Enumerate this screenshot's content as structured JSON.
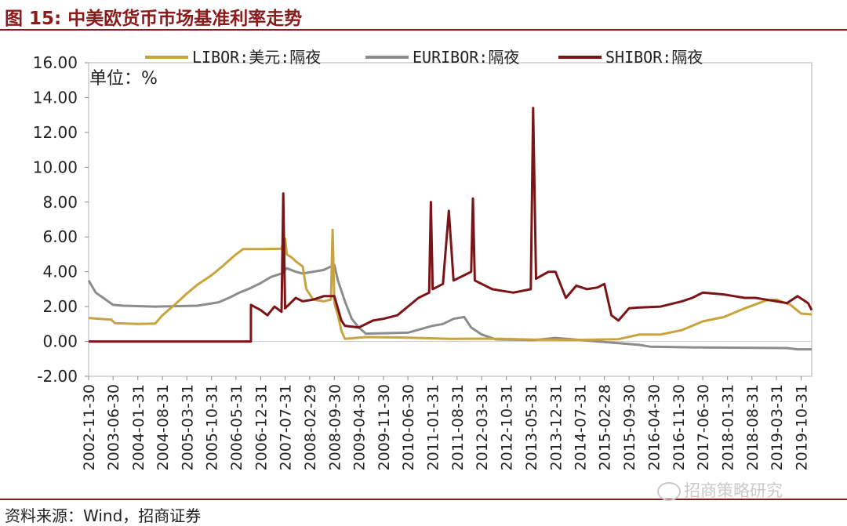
{
  "figure": {
    "title": "图 15:  中美欧货币市场基准利率走势",
    "source": "资料来源：Wind，招商证券",
    "watermark": "招商策略研究"
  },
  "chart_data": {
    "type": "line",
    "unit_label": "单位：%",
    "ylim": [
      -2,
      16
    ],
    "yticks": [
      "16.00",
      "14.00",
      "12.00",
      "10.00",
      "8.00",
      "6.00",
      "4.00",
      "2.00",
      "0.00",
      "-2.00"
    ],
    "ytick_values": [
      16,
      14,
      12,
      10,
      8,
      6,
      4,
      2,
      0,
      -2
    ],
    "xlim": [
      "2002-11-30",
      "2020-01-31"
    ],
    "xticks": [
      "2002-11-30",
      "2003-06-30",
      "2004-01-31",
      "2004-08-31",
      "2005-03-31",
      "2005-10-31",
      "2006-05-31",
      "2006-12-31",
      "2007-07-31",
      "2008-02-29",
      "2008-09-30",
      "2009-04-30",
      "2009-11-30",
      "2010-06-30",
      "2011-01-31",
      "2011-08-31",
      "2012-03-31",
      "2012-10-31",
      "2013-05-31",
      "2013-12-31",
      "2014-07-31",
      "2015-02-28",
      "2015-09-30",
      "2016-04-30",
      "2016-11-30",
      "2017-06-30",
      "2018-01-31",
      "2018-08-31",
      "2019-03-31",
      "2019-10-31"
    ],
    "legend_position": "top",
    "grid": false,
    "series": [
      {
        "name": "LIBOR:美元:隔夜",
        "color": "#c8a33e",
        "points": [
          [
            "2002-11-30",
            1.35
          ],
          [
            "2003-02-28",
            1.3
          ],
          [
            "2003-06-15",
            1.25
          ],
          [
            "2003-07-15",
            1.05
          ],
          [
            "2004-01-31",
            1.0
          ],
          [
            "2004-06-30",
            1.03
          ],
          [
            "2004-08-31",
            1.5
          ],
          [
            "2004-12-31",
            2.2
          ],
          [
            "2005-03-31",
            2.75
          ],
          [
            "2005-06-30",
            3.25
          ],
          [
            "2005-10-31",
            3.8
          ],
          [
            "2006-01-31",
            4.3
          ],
          [
            "2006-05-31",
            5.0
          ],
          [
            "2006-07-31",
            5.3
          ],
          [
            "2007-01-31",
            5.3
          ],
          [
            "2007-06-30",
            5.32
          ],
          [
            "2007-07-31",
            5.9
          ],
          [
            "2007-08-15",
            5.0
          ],
          [
            "2007-09-30",
            4.8
          ],
          [
            "2007-10-31",
            4.6
          ],
          [
            "2007-12-31",
            4.3
          ],
          [
            "2008-01-31",
            3.0
          ],
          [
            "2008-03-31",
            2.4
          ],
          [
            "2008-06-30",
            2.3
          ],
          [
            "2008-09-01",
            2.4
          ],
          [
            "2008-09-15",
            6.4
          ],
          [
            "2008-09-30",
            2.2
          ],
          [
            "2008-10-31",
            1.5
          ],
          [
            "2008-12-01",
            0.6
          ],
          [
            "2008-12-31",
            0.15
          ],
          [
            "2009-06-30",
            0.25
          ],
          [
            "2010-06-30",
            0.22
          ],
          [
            "2011-06-30",
            0.15
          ],
          [
            "2012-06-30",
            0.16
          ],
          [
            "2013-06-30",
            0.1
          ],
          [
            "2014-06-30",
            0.09
          ],
          [
            "2015-06-30",
            0.13
          ],
          [
            "2015-12-31",
            0.4
          ],
          [
            "2016-06-30",
            0.4
          ],
          [
            "2016-12-31",
            0.65
          ],
          [
            "2017-03-31",
            0.9
          ],
          [
            "2017-06-30",
            1.15
          ],
          [
            "2017-12-31",
            1.4
          ],
          [
            "2018-03-31",
            1.65
          ],
          [
            "2018-06-30",
            1.9
          ],
          [
            "2018-12-31",
            2.35
          ],
          [
            "2019-03-31",
            2.4
          ],
          [
            "2019-07-31",
            2.1
          ],
          [
            "2019-10-31",
            1.6
          ],
          [
            "2020-01-31",
            1.55
          ]
        ]
      },
      {
        "name": "EURIBOR:隔夜",
        "color": "#8c8c8c",
        "points": [
          [
            "2002-11-30",
            3.5
          ],
          [
            "2003-01-31",
            2.8
          ],
          [
            "2003-06-30",
            2.1
          ],
          [
            "2003-09-30",
            2.05
          ],
          [
            "2004-06-30",
            2.0
          ],
          [
            "2005-06-30",
            2.05
          ],
          [
            "2005-12-31",
            2.25
          ],
          [
            "2006-03-31",
            2.5
          ],
          [
            "2006-06-30",
            2.8
          ],
          [
            "2006-09-30",
            3.05
          ],
          [
            "2006-12-31",
            3.35
          ],
          [
            "2007-03-31",
            3.7
          ],
          [
            "2007-06-30",
            3.9
          ],
          [
            "2007-08-15",
            4.2
          ],
          [
            "2007-10-31",
            4.0
          ],
          [
            "2007-12-31",
            3.9
          ],
          [
            "2008-06-30",
            4.1
          ],
          [
            "2008-09-30",
            4.4
          ],
          [
            "2008-10-31",
            3.5
          ],
          [
            "2008-12-31",
            2.3
          ],
          [
            "2009-02-28",
            1.3
          ],
          [
            "2009-04-30",
            0.8
          ],
          [
            "2009-06-30",
            0.45
          ],
          [
            "2010-06-30",
            0.5
          ],
          [
            "2011-01-31",
            0.9
          ],
          [
            "2011-04-30",
            1.0
          ],
          [
            "2011-07-31",
            1.3
          ],
          [
            "2011-10-31",
            1.4
          ],
          [
            "2011-12-31",
            0.8
          ],
          [
            "2012-03-31",
            0.4
          ],
          [
            "2012-07-31",
            0.12
          ],
          [
            "2013-06-30",
            0.08
          ],
          [
            "2013-12-31",
            0.2
          ],
          [
            "2014-06-30",
            0.1
          ],
          [
            "2014-12-31",
            0.0
          ],
          [
            "2015-06-30",
            -0.1
          ],
          [
            "2015-12-31",
            -0.2
          ],
          [
            "2016-03-31",
            -0.3
          ],
          [
            "2017-06-30",
            -0.35
          ],
          [
            "2019-06-30",
            -0.38
          ],
          [
            "2019-09-30",
            -0.45
          ],
          [
            "2020-01-31",
            -0.45
          ]
        ]
      },
      {
        "name": "SHIBOR:隔夜",
        "color": "#7a1416",
        "points": [
          [
            "2002-11-30",
            0.0
          ],
          [
            "2006-10-07",
            0.0
          ],
          [
            "2006-10-08",
            2.1
          ],
          [
            "2006-12-31",
            1.8
          ],
          [
            "2007-02-28",
            1.5
          ],
          [
            "2007-04-30",
            2.0
          ],
          [
            "2007-06-30",
            1.7
          ],
          [
            "2007-07-15",
            8.5
          ],
          [
            "2007-07-31",
            1.9
          ],
          [
            "2007-10-31",
            2.5
          ],
          [
            "2007-12-31",
            2.3
          ],
          [
            "2008-03-31",
            2.4
          ],
          [
            "2008-06-30",
            2.6
          ],
          [
            "2008-09-30",
            2.6
          ],
          [
            "2008-11-30",
            1.2
          ],
          [
            "2008-12-31",
            0.9
          ],
          [
            "2009-04-30",
            0.8
          ],
          [
            "2009-08-31",
            1.2
          ],
          [
            "2009-11-30",
            1.3
          ],
          [
            "2010-03-31",
            1.5
          ],
          [
            "2010-06-30",
            2.0
          ],
          [
            "2010-09-30",
            2.5
          ],
          [
            "2010-12-31",
            2.8
          ],
          [
            "2011-01-15",
            8.0
          ],
          [
            "2011-01-31",
            3.0
          ],
          [
            "2011-04-30",
            3.3
          ],
          [
            "2011-06-20",
            7.5
          ],
          [
            "2011-07-31",
            3.5
          ],
          [
            "2011-10-31",
            3.8
          ],
          [
            "2011-12-31",
            4.0
          ],
          [
            "2012-01-15",
            8.2
          ],
          [
            "2012-01-31",
            3.5
          ],
          [
            "2012-06-30",
            3.0
          ],
          [
            "2012-12-31",
            2.8
          ],
          [
            "2013-05-31",
            3.0
          ],
          [
            "2013-06-20",
            13.4
          ],
          [
            "2013-07-15",
            3.6
          ],
          [
            "2013-10-31",
            4.0
          ],
          [
            "2013-12-31",
            4.0
          ],
          [
            "2014-03-31",
            2.5
          ],
          [
            "2014-06-30",
            3.2
          ],
          [
            "2014-09-30",
            3.0
          ],
          [
            "2014-12-31",
            3.1
          ],
          [
            "2015-02-28",
            3.3
          ],
          [
            "2015-04-30",
            1.5
          ],
          [
            "2015-06-30",
            1.2
          ],
          [
            "2015-09-30",
            1.9
          ],
          [
            "2015-12-31",
            1.95
          ],
          [
            "2016-06-30",
            2.0
          ],
          [
            "2016-12-31",
            2.3
          ],
          [
            "2017-03-31",
            2.5
          ],
          [
            "2017-06-30",
            2.8
          ],
          [
            "2017-12-31",
            2.7
          ],
          [
            "2018-03-31",
            2.6
          ],
          [
            "2018-06-30",
            2.5
          ],
          [
            "2018-09-30",
            2.5
          ],
          [
            "2018-12-31",
            2.4
          ],
          [
            "2019-03-31",
            2.3
          ],
          [
            "2019-06-30",
            2.2
          ],
          [
            "2019-09-30",
            2.6
          ],
          [
            "2019-12-31",
            2.2
          ],
          [
            "2020-01-31",
            1.8
          ]
        ]
      }
    ]
  }
}
